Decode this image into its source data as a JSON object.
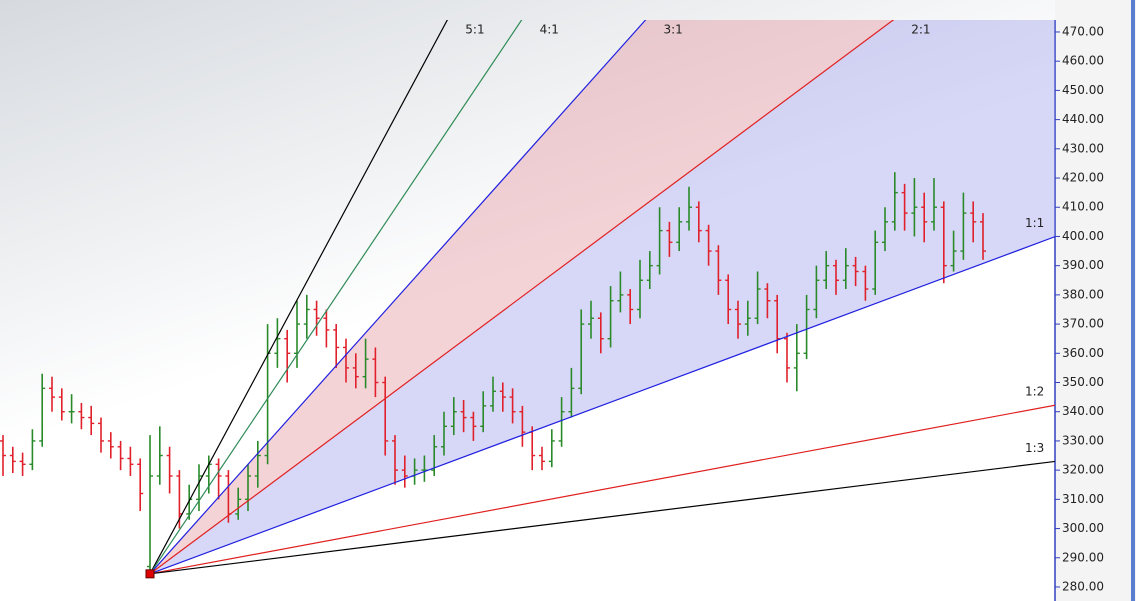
{
  "chart_data": {
    "type": "ohlc",
    "ylim": [
      275.2,
      474.1
    ],
    "yticks": [
      {
        "value": 280,
        "label": "280.00"
      },
      {
        "value": 290,
        "label": "290.00"
      },
      {
        "value": 300,
        "label": "300.00"
      },
      {
        "value": 310,
        "label": "310.00"
      },
      {
        "value": 320,
        "label": "320.00"
      },
      {
        "value": 330,
        "label": "330.00"
      },
      {
        "value": 340,
        "label": "340.00"
      },
      {
        "value": 350,
        "label": "350.00"
      },
      {
        "value": 360,
        "label": "360.00"
      },
      {
        "value": 370,
        "label": "370.00"
      },
      {
        "value": 380,
        "label": "380.00"
      },
      {
        "value": 390,
        "label": "390.00"
      },
      {
        "value": 400,
        "label": "400.00"
      },
      {
        "value": 410,
        "label": "410.00"
      },
      {
        "value": 420,
        "label": "420.00"
      },
      {
        "value": 430,
        "label": "430.00"
      },
      {
        "value": 440,
        "label": "440.00"
      },
      {
        "value": 450,
        "label": "450.00"
      },
      {
        "value": 460,
        "label": "460.00"
      },
      {
        "value": 470,
        "label": "470.00"
      }
    ],
    "up_color": "#2a8a2a",
    "down_color": "#e0202a",
    "open": [
      330,
      325,
      323,
      322,
      330,
      348,
      345,
      340,
      340,
      338,
      336,
      330,
      328,
      324,
      322,
      287,
      318,
      325,
      318,
      305,
      310,
      318,
      322,
      318,
      305,
      310,
      318,
      325,
      360,
      365,
      360,
      370,
      375,
      372,
      368,
      362,
      355,
      352,
      358,
      350,
      330,
      320,
      318,
      320,
      320,
      328,
      335,
      340,
      338,
      335,
      342,
      347,
      345,
      340,
      333,
      325,
      323,
      330,
      340,
      348,
      370,
      372,
      365,
      378,
      380,
      375,
      385,
      390,
      402,
      398,
      405,
      410,
      402,
      395,
      385,
      375,
      370,
      372,
      382,
      378,
      365,
      355,
      360,
      375,
      385,
      390,
      385,
      390,
      388,
      382,
      398,
      405,
      415,
      408,
      410,
      405,
      410,
      390,
      395,
      408,
      405
    ],
    "high": [
      332,
      328,
      326,
      334,
      353,
      352,
      348,
      346,
      343,
      342,
      338,
      333,
      330,
      328,
      324,
      332,
      335,
      328,
      320,
      315,
      322,
      325,
      324,
      320,
      314,
      322,
      330,
      370,
      372,
      368,
      378,
      380,
      378,
      375,
      370,
      365,
      360,
      365,
      362,
      352,
      332,
      325,
      324,
      325,
      332,
      340,
      345,
      344,
      340,
      347,
      352,
      350,
      348,
      342,
      335,
      328,
      334,
      345,
      355,
      375,
      378,
      374,
      383,
      388,
      382,
      392,
      395,
      410,
      405,
      410,
      417,
      412,
      404,
      397,
      387,
      378,
      378,
      388,
      384,
      380,
      367,
      370,
      380,
      390,
      395,
      392,
      396,
      393,
      390,
      402,
      410,
      422,
      418,
      420,
      415,
      420,
      412,
      402,
      415,
      412,
      408
    ],
    "low": [
      318,
      319,
      318,
      320,
      328,
      340,
      337,
      336,
      334,
      332,
      326,
      324,
      320,
      318,
      306,
      284.5,
      315,
      312,
      300,
      303,
      306,
      312,
      310,
      302,
      303,
      306,
      314,
      322,
      355,
      350,
      355,
      365,
      366,
      362,
      355,
      350,
      348,
      348,
      345,
      325,
      315,
      314,
      315,
      316,
      318,
      325,
      332,
      333,
      330,
      333,
      340,
      340,
      336,
      328,
      320,
      320,
      321,
      328,
      338,
      346,
      365,
      360,
      362,
      374,
      370,
      372,
      382,
      387,
      393,
      395,
      402,
      398,
      390,
      380,
      370,
      365,
      366,
      370,
      372,
      360,
      350,
      347,
      358,
      372,
      382,
      380,
      382,
      383,
      378,
      380,
      395,
      402,
      402,
      400,
      398,
      402,
      384,
      388,
      392,
      398,
      392
    ],
    "close": [
      325,
      323,
      322,
      330,
      348,
      345,
      340,
      340,
      338,
      336,
      330,
      328,
      324,
      322,
      312,
      318,
      325,
      318,
      305,
      310,
      318,
      322,
      318,
      305,
      310,
      318,
      325,
      360,
      365,
      360,
      370,
      375,
      372,
      368,
      362,
      355,
      352,
      358,
      350,
      330,
      320,
      318,
      320,
      320,
      328,
      335,
      340,
      338,
      335,
      342,
      347,
      345,
      340,
      333,
      325,
      323,
      330,
      340,
      348,
      370,
      372,
      365,
      378,
      380,
      375,
      385,
      390,
      402,
      398,
      405,
      410,
      402,
      395,
      385,
      375,
      370,
      372,
      382,
      378,
      365,
      355,
      360,
      375,
      385,
      390,
      385,
      390,
      388,
      382,
      398,
      405,
      415,
      408,
      410,
      405,
      410,
      390,
      395,
      408,
      405,
      395
    ],
    "fan": {
      "origin_index": 15,
      "origin_value": 284.5,
      "unit": 1.25,
      "origin_color": "#e00000",
      "lines": [
        {
          "label": "5:1",
          "ratio": 5,
          "color": "#000000"
        },
        {
          "label": "4:1",
          "ratio": 4,
          "color": "#2e8b57"
        },
        {
          "label": "3:1",
          "ratio": 3,
          "color": "#2020e0"
        },
        {
          "label": "2:1",
          "ratio": 2,
          "color": "#e02020"
        },
        {
          "label": "1:1",
          "ratio": 1,
          "color": "#2020e0"
        },
        {
          "label": "1:2",
          "ratio": 0.5,
          "color": "#e02020"
        },
        {
          "label": "1:3",
          "ratio": 0.3333,
          "color": "#000000"
        }
      ],
      "fills": [
        {
          "between": [
            "3:1",
            "2:1"
          ],
          "color": "rgba(225,140,150,0.38)"
        },
        {
          "between": [
            "2:1",
            "1:1"
          ],
          "color": "rgba(150,150,235,0.38)"
        }
      ]
    }
  }
}
